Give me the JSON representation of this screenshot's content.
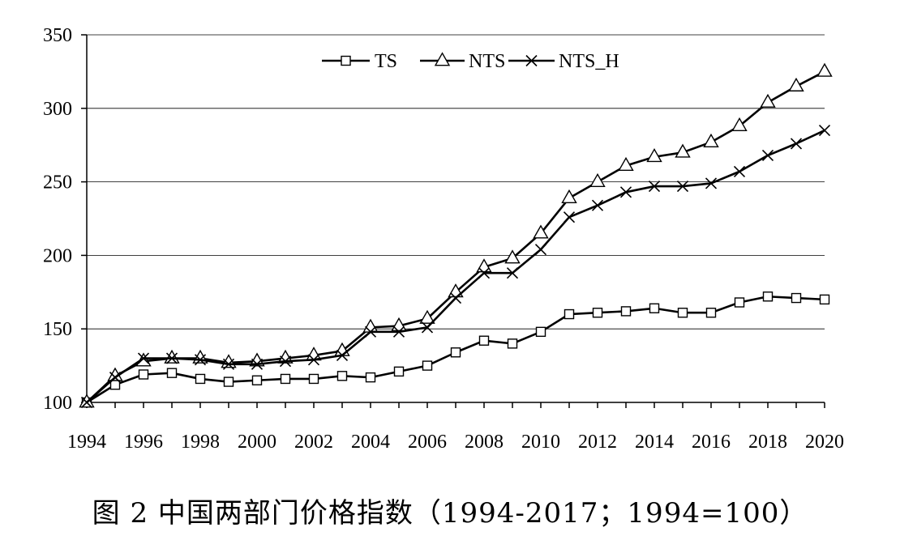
{
  "caption": "图 2  中国两部门价格指数（1994-2017；1994=100）",
  "chart_data": {
    "type": "line",
    "title": "",
    "xlabel": "",
    "ylabel": "",
    "xlim": [
      1994,
      2020
    ],
    "ylim": [
      100,
      350
    ],
    "y_ticks": [
      "100",
      "150",
      "200",
      "250",
      "300",
      "350"
    ],
    "x_tick_labels": [
      "1994",
      "1996",
      "1998",
      "2000",
      "2002",
      "2004",
      "2006",
      "2008",
      "2010",
      "2012",
      "2014",
      "2016",
      "2018",
      "2020"
    ],
    "grid": "horizontal",
    "legend_position": "top-center",
    "x": [
      1994,
      1995,
      1996,
      1997,
      1998,
      1999,
      2000,
      2001,
      2002,
      2003,
      2004,
      2005,
      2006,
      2007,
      2008,
      2009,
      2010,
      2011,
      2012,
      2013,
      2014,
      2015,
      2016,
      2017,
      2018,
      2019,
      2020
    ],
    "series": [
      {
        "name": "TS",
        "marker": "square",
        "values": [
          100,
          112,
          119,
          120,
          116,
          114,
          115,
          116,
          116,
          118,
          117,
          121,
          125,
          134,
          142,
          140,
          148,
          160,
          161,
          162,
          164,
          161,
          161,
          168,
          172,
          171,
          170
        ]
      },
      {
        "name": "NTS",
        "marker": "triangle",
        "values": [
          100,
          118,
          128,
          130,
          130,
          127,
          128,
          130,
          132,
          135,
          151,
          152,
          157,
          175,
          192,
          198,
          215,
          239,
          250,
          261,
          267,
          270,
          277,
          288,
          304,
          315,
          325
        ]
      },
      {
        "name": "NTS_H",
        "marker": "x",
        "values": [
          100,
          117,
          130,
          130,
          129,
          126,
          126,
          128,
          129,
          132,
          148,
          148,
          151,
          171,
          188,
          188,
          204,
          226,
          234,
          243,
          247,
          247,
          249,
          257,
          268,
          276,
          285
        ]
      }
    ]
  }
}
